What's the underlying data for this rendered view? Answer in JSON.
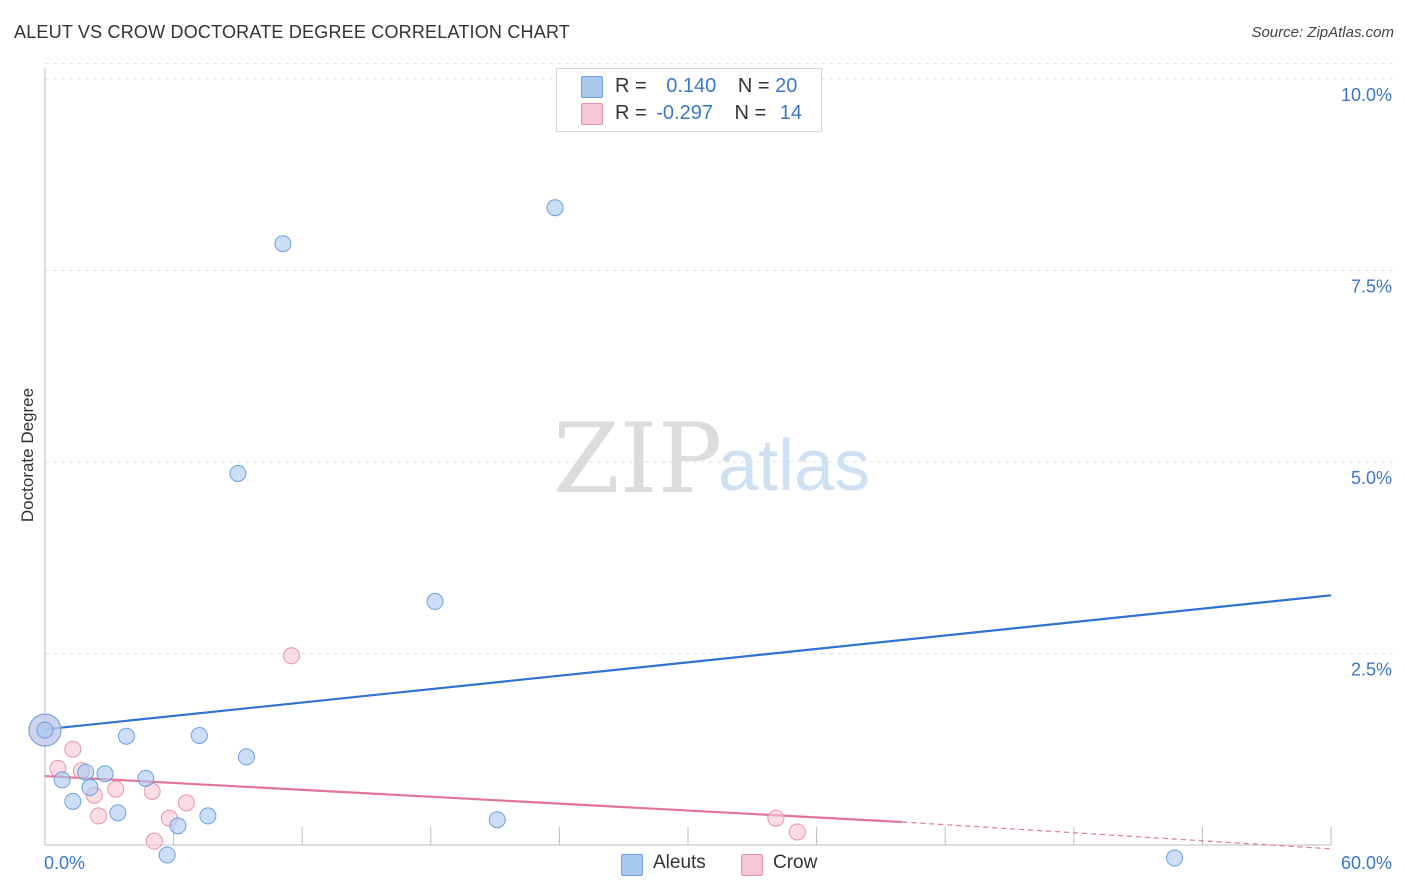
{
  "header": {
    "title": "ALEUT VS CROW DOCTORATE DEGREE CORRELATION CHART",
    "source": "Source: ZipAtlas.com"
  },
  "watermark": {
    "zip": "ZIP",
    "atlas": "atlas"
  },
  "legend": {
    "rows": [
      {
        "r_label": "R =",
        "r_value": "0.140",
        "n_label": "N =",
        "n_value": "20",
        "color": "#a9c8f0",
        "border": "#6a9fe0"
      },
      {
        "r_label": "R =",
        "r_value": "-0.297",
        "n_label": "N =",
        "n_value": "14",
        "color": "#f8c6d4",
        "border": "#e892ac"
      }
    ]
  },
  "bottom_legend": [
    {
      "label": "Aleuts",
      "color": "#a9c8f0",
      "border": "#6a9fe0"
    },
    {
      "label": "Crow",
      "color": "#f8c6d4",
      "border": "#e892ac"
    }
  ],
  "chart_data": {
    "type": "scatter",
    "title": "ALEUT VS CROW DOCTORATE DEGREE CORRELATION CHART",
    "xlabel": "",
    "ylabel": "Doctorate Degree",
    "xlim": [
      0,
      60
    ],
    "ylim": [
      0,
      10.5
    ],
    "x_tick_labels": [
      "0.0%",
      "60.0%"
    ],
    "y_ticks": [
      2.5,
      5.0,
      7.5,
      10.0
    ],
    "y_tick_labels": [
      "2.5%",
      "5.0%",
      "7.5%",
      "10.0%"
    ],
    "grid": true,
    "series": [
      {
        "name": "Aleuts",
        "color": "#a9c8f0",
        "stroke": "#6a9fe0",
        "line_color": "#2f72d0",
        "points": [
          [
            0.0,
            1.5
          ],
          [
            0.8,
            0.85
          ],
          [
            1.3,
            0.57
          ],
          [
            1.9,
            0.95
          ],
          [
            2.1,
            0.75
          ],
          [
            2.8,
            0.93
          ],
          [
            3.4,
            0.42
          ],
          [
            3.8,
            1.42
          ],
          [
            4.7,
            0.87
          ],
          [
            5.7,
            -0.13
          ],
          [
            6.2,
            0.25
          ],
          [
            7.2,
            1.43
          ],
          [
            7.6,
            0.38
          ],
          [
            9.0,
            4.85
          ],
          [
            9.4,
            1.15
          ],
          [
            11.1,
            7.85
          ],
          [
            18.2,
            3.18
          ],
          [
            21.1,
            0.33
          ],
          [
            23.8,
            8.32
          ],
          [
            52.7,
            -0.17
          ]
        ],
        "big_points": [
          [
            0.0,
            1.5
          ]
        ],
        "trend": {
          "x": [
            0,
            60
          ],
          "y": [
            1.51,
            3.26
          ]
        }
      },
      {
        "name": "Crow",
        "color": "#f8c6d4",
        "stroke": "#e892ac",
        "line_color": "#e2749a",
        "points": [
          [
            0.6,
            1.0
          ],
          [
            1.3,
            1.25
          ],
          [
            1.7,
            0.97
          ],
          [
            2.3,
            0.65
          ],
          [
            2.5,
            0.38
          ],
          [
            3.3,
            0.73
          ],
          [
            5.0,
            0.7
          ],
          [
            5.1,
            0.05
          ],
          [
            5.8,
            0.35
          ],
          [
            6.6,
            0.55
          ],
          [
            11.5,
            2.47
          ],
          [
            34.1,
            0.35
          ],
          [
            35.1,
            0.17
          ]
        ],
        "big_points": [
          [
            0.0,
            1.5
          ]
        ],
        "trend": {
          "x": [
            0,
            40
          ],
          "y": [
            0.9,
            0.3
          ],
          "dash_x": [
            40,
            60
          ],
          "dash_y": [
            0.3,
            -0.05
          ]
        }
      }
    ]
  }
}
